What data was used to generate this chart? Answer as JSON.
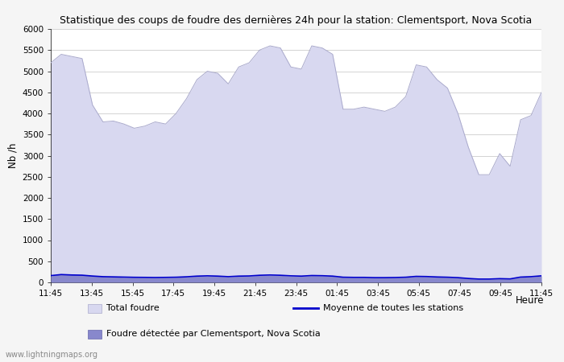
{
  "title": "Statistique des coups de foudre des dernières 24h pour la station: Clementsport, Nova Scotia",
  "xlabel": "Heure",
  "ylabel": "Nb /h",
  "ylim": [
    0,
    6000
  ],
  "yticks": [
    0,
    500,
    1000,
    1500,
    2000,
    2500,
    3000,
    3500,
    4000,
    4500,
    5000,
    5500,
    6000
  ],
  "xtick_labels": [
    "11:45",
    "13:45",
    "15:45",
    "17:45",
    "19:45",
    "21:45",
    "23:45",
    "01:45",
    "03:45",
    "05:45",
    "07:45",
    "09:45",
    "11:45"
  ],
  "background_color": "#f5f5f5",
  "plot_bg_color": "#ffffff",
  "grid_color": "#cccccc",
  "total_foudre_color": "#d8d8f0",
  "total_foudre_edge_color": "#aaaacc",
  "local_foudre_color": "#8888cc",
  "local_foudre_edge_color": "#6666aa",
  "moyenne_color": "#0000cc",
  "watermark": "www.lightningmaps.org",
  "total_foudre_values": [
    5200,
    5400,
    5350,
    5300,
    4200,
    3800,
    3820,
    3750,
    3650,
    3700,
    3800,
    3750,
    4000,
    4350,
    4800,
    5000,
    4950,
    4700,
    5100,
    5200,
    5500,
    5600,
    5550,
    5100,
    5050,
    5600,
    5550,
    5400,
    4100,
    4100,
    4150,
    4100,
    4050,
    4150,
    4400,
    5150,
    5100,
    4800,
    4600,
    4000,
    3200,
    2550,
    2550,
    3050,
    2750,
    3850,
    3950,
    4500
  ],
  "local_foudre_values": [
    150,
    200,
    190,
    180,
    160,
    140,
    130,
    120,
    120,
    115,
    110,
    115,
    120,
    130,
    145,
    150,
    145,
    130,
    145,
    150,
    165,
    170,
    165,
    150,
    145,
    160,
    155,
    145,
    120,
    115,
    115,
    110,
    110,
    112,
    120,
    140,
    135,
    125,
    120,
    110,
    90,
    75,
    75,
    85,
    80,
    120,
    130,
    150
  ],
  "moyenne_values": [
    160,
    185,
    175,
    170,
    150,
    135,
    130,
    125,
    120,
    118,
    115,
    118,
    122,
    132,
    148,
    155,
    148,
    135,
    148,
    152,
    168,
    175,
    168,
    155,
    148,
    162,
    158,
    148,
    122,
    118,
    118,
    112,
    112,
    115,
    122,
    142,
    138,
    128,
    122,
    112,
    92,
    78,
    78,
    88,
    82,
    125,
    135,
    155
  ]
}
